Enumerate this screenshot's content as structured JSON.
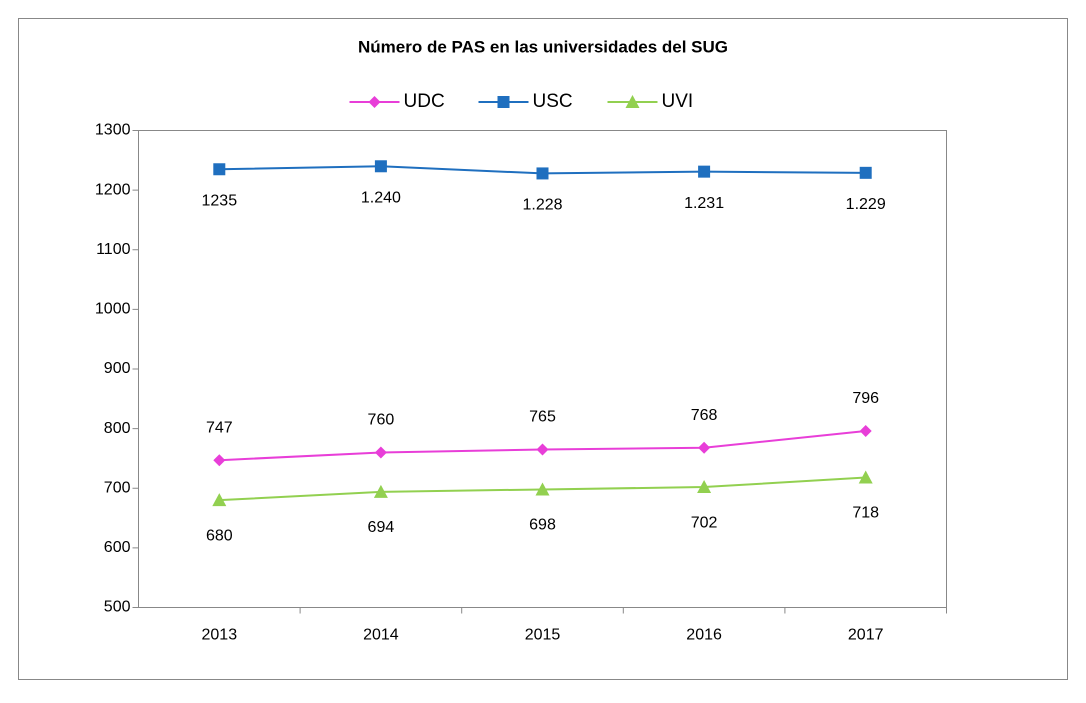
{
  "chart_data": {
    "type": "line",
    "title": "Número de PAS en las universidades del SUG",
    "categories": [
      "2013",
      "2014",
      "2015",
      "2016",
      "2017"
    ],
    "series": [
      {
        "name": "UDC",
        "color": "#e83ed8",
        "marker": "diamond",
        "values": [
          747,
          760,
          765,
          768,
          796
        ]
      },
      {
        "name": "USC",
        "color": "#1f6fbf",
        "marker": "square",
        "values": [
          1235,
          1240,
          1228,
          1231,
          1229
        ],
        "value_labels": [
          "1235",
          "1.240",
          "1.228",
          "1.231",
          "1.229"
        ]
      },
      {
        "name": "UVI",
        "color": "#92d050",
        "marker": "triangle",
        "values": [
          680,
          694,
          698,
          702,
          718
        ]
      }
    ],
    "ylim": [
      500,
      1300
    ],
    "yticks": [
      500,
      600,
      700,
      800,
      900,
      1000,
      1100,
      1200,
      1300
    ],
    "grid": false,
    "legend": "top"
  }
}
